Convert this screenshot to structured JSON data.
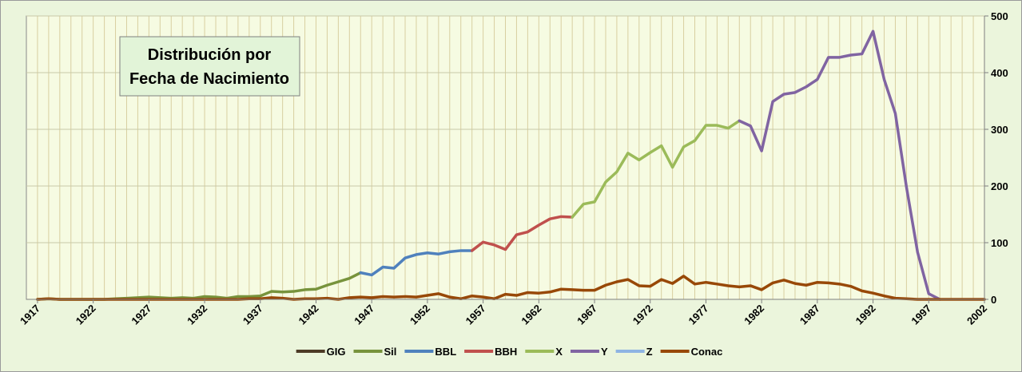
{
  "chart_data": {
    "type": "line",
    "title": [
      "Distribución por",
      "Fecha de Nacimiento"
    ],
    "x": [
      1917,
      1918,
      1919,
      1920,
      1921,
      1922,
      1923,
      1924,
      1925,
      1926,
      1927,
      1928,
      1929,
      1930,
      1931,
      1932,
      1933,
      1934,
      1935,
      1936,
      1937,
      1938,
      1939,
      1940,
      1941,
      1942,
      1943,
      1944,
      1945,
      1946,
      1947,
      1948,
      1949,
      1950,
      1951,
      1952,
      1953,
      1954,
      1955,
      1956,
      1957,
      1958,
      1959,
      1960,
      1961,
      1962,
      1963,
      1964,
      1965,
      1966,
      1967,
      1968,
      1969,
      1970,
      1971,
      1972,
      1973,
      1974,
      1975,
      1976,
      1977,
      1978,
      1979,
      1980,
      1981,
      1982,
      1983,
      1984,
      1985,
      1986,
      1987,
      1988,
      1989,
      1990,
      1991,
      1992,
      1993,
      1994,
      1995,
      1996,
      1997,
      1998,
      1999,
      2000,
      2001,
      2002
    ],
    "xlim": [
      1916,
      2002
    ],
    "xticks": [
      1917,
      1922,
      1927,
      1932,
      1937,
      1942,
      1947,
      1952,
      1957,
      1962,
      1967,
      1972,
      1977,
      1982,
      1987,
      1992,
      1997,
      2002
    ],
    "ylim": [
      0,
      500
    ],
    "yticks": [
      0,
      100,
      200,
      300,
      400,
      500
    ],
    "grid": true,
    "legend": "bottom",
    "series": [
      {
        "name": "GIG",
        "color": "#4d3b26",
        "values": [
          null,
          null,
          null,
          null,
          null,
          null,
          null,
          null,
          null,
          null,
          null,
          null,
          null,
          null,
          null,
          null,
          null,
          null,
          null,
          null,
          null,
          null,
          null,
          null,
          null,
          null,
          null,
          null,
          null,
          null,
          null,
          null,
          null,
          null,
          null,
          null,
          null,
          null,
          null,
          null,
          null,
          null,
          null,
          null,
          null,
          null,
          null,
          null,
          null,
          null,
          null,
          null,
          null,
          null,
          null,
          null,
          null,
          null,
          null,
          null,
          null,
          null,
          null,
          null,
          null,
          null,
          null,
          null,
          null,
          null,
          null,
          null,
          null,
          null,
          null,
          null,
          null,
          null,
          null,
          null,
          null,
          null,
          null,
          null,
          null,
          null
        ]
      },
      {
        "name": "Sil",
        "color": "#77933c",
        "values": [
          0,
          1,
          0,
          0,
          0,
          0,
          0,
          1,
          2,
          3,
          4,
          3,
          2,
          3,
          2,
          5,
          4,
          2,
          5,
          5,
          6,
          14,
          13,
          14,
          17,
          18,
          25,
          31,
          37,
          47,
          null,
          null,
          null,
          null,
          null,
          null,
          null,
          null,
          null,
          null,
          null,
          null,
          null,
          null,
          null,
          null,
          null,
          null,
          null,
          null,
          null,
          null,
          null,
          null,
          null,
          null,
          null,
          null,
          null,
          null,
          null,
          null,
          null,
          null,
          null,
          null,
          null,
          null,
          null,
          null,
          null,
          null,
          null,
          null,
          null,
          null,
          null,
          null,
          null,
          null,
          null,
          null,
          null,
          null,
          null,
          null
        ]
      },
      {
        "name": "BBL",
        "color": "#4f81bd",
        "values": [
          null,
          null,
          null,
          null,
          null,
          null,
          null,
          null,
          null,
          null,
          null,
          null,
          null,
          null,
          null,
          null,
          null,
          null,
          null,
          null,
          null,
          null,
          null,
          null,
          null,
          null,
          null,
          null,
          null,
          47,
          43,
          57,
          55,
          73,
          79,
          82,
          80,
          84,
          86,
          86,
          null,
          null,
          null,
          null,
          null,
          null,
          null,
          null,
          null,
          null,
          null,
          null,
          null,
          null,
          null,
          null,
          null,
          null,
          null,
          null,
          null,
          null,
          null,
          null,
          null,
          null,
          null,
          null,
          null,
          null,
          null,
          null,
          null,
          null,
          null,
          null,
          null,
          null,
          null,
          null,
          null,
          null,
          null,
          null,
          null,
          null
        ]
      },
      {
        "name": "BBH",
        "color": "#c0504d",
        "values": [
          null,
          null,
          null,
          null,
          null,
          null,
          null,
          null,
          null,
          null,
          null,
          null,
          null,
          null,
          null,
          null,
          null,
          null,
          null,
          null,
          null,
          null,
          null,
          null,
          null,
          null,
          null,
          null,
          null,
          null,
          null,
          null,
          null,
          null,
          null,
          null,
          null,
          null,
          null,
          86,
          101,
          96,
          88,
          114,
          119,
          131,
          142,
          146,
          145,
          null,
          null,
          null,
          null,
          null,
          null,
          null,
          null,
          null,
          null,
          null,
          null,
          null,
          null,
          null,
          null,
          null,
          null,
          null,
          null,
          null,
          null,
          null,
          null,
          null,
          null,
          null,
          null,
          null,
          null,
          null,
          null,
          null,
          null,
          null,
          null,
          null
        ]
      },
      {
        "name": "X",
        "color": "#9bbb59",
        "values": [
          null,
          null,
          null,
          null,
          null,
          null,
          null,
          null,
          null,
          null,
          null,
          null,
          null,
          null,
          null,
          null,
          null,
          null,
          null,
          null,
          null,
          null,
          null,
          null,
          null,
          null,
          null,
          null,
          null,
          null,
          null,
          null,
          null,
          null,
          null,
          null,
          null,
          null,
          null,
          null,
          null,
          null,
          null,
          null,
          null,
          null,
          null,
          null,
          145,
          168,
          172,
          207,
          225,
          258,
          246,
          259,
          271,
          233,
          269,
          280,
          307,
          307,
          302,
          315,
          null,
          null,
          null,
          null,
          null,
          null,
          null,
          null,
          null,
          null,
          null,
          null,
          null,
          null,
          null,
          null,
          null,
          null,
          null,
          null,
          null,
          null
        ]
      },
      {
        "name": "Y",
        "color": "#8064a2",
        "values": [
          null,
          null,
          null,
          null,
          null,
          null,
          null,
          null,
          null,
          null,
          null,
          null,
          null,
          null,
          null,
          null,
          null,
          null,
          null,
          null,
          null,
          null,
          null,
          null,
          null,
          null,
          null,
          null,
          null,
          null,
          null,
          null,
          null,
          null,
          null,
          null,
          null,
          null,
          null,
          null,
          null,
          null,
          null,
          null,
          null,
          null,
          null,
          null,
          null,
          null,
          null,
          null,
          null,
          null,
          null,
          null,
          null,
          null,
          null,
          null,
          null,
          null,
          null,
          315,
          306,
          262,
          349,
          362,
          365,
          375,
          388,
          427,
          427,
          431,
          433,
          473,
          388,
          328,
          198,
          83,
          10,
          0,
          null,
          null,
          null,
          null
        ]
      },
      {
        "name": "Z",
        "color": "#8eb4e3",
        "values": [
          null,
          null,
          null,
          null,
          null,
          null,
          null,
          null,
          null,
          null,
          null,
          null,
          null,
          null,
          null,
          null,
          null,
          null,
          null,
          null,
          null,
          null,
          null,
          null,
          null,
          null,
          null,
          null,
          null,
          null,
          null,
          null,
          null,
          null,
          null,
          null,
          null,
          null,
          null,
          null,
          null,
          null,
          null,
          null,
          null,
          null,
          null,
          null,
          null,
          null,
          null,
          null,
          null,
          null,
          null,
          null,
          null,
          null,
          null,
          null,
          null,
          null,
          null,
          null,
          null,
          null,
          null,
          null,
          null,
          null,
          null,
          null,
          null,
          null,
          null,
          null,
          null,
          null,
          null,
          null,
          null,
          null,
          null,
          null,
          null,
          null
        ]
      },
      {
        "name": "Conac",
        "color": "#984807",
        "values": [
          0,
          1,
          0,
          0,
          0,
          0,
          0,
          0,
          0,
          0,
          0,
          0,
          0,
          0,
          0,
          0,
          0,
          0,
          0,
          1,
          1,
          3,
          2,
          0,
          1,
          1,
          2,
          0,
          3,
          4,
          3,
          5,
          4,
          5,
          4,
          7,
          10,
          4,
          1,
          6,
          4,
          1,
          9,
          7,
          12,
          11,
          13,
          18,
          17,
          16,
          16,
          25,
          31,
          35,
          24,
          23,
          35,
          28,
          41,
          27,
          30,
          27,
          24,
          22,
          24,
          17,
          29,
          34,
          28,
          25,
          30,
          29,
          27,
          23,
          15,
          11,
          6,
          2,
          1,
          0,
          0,
          0,
          0,
          0,
          0,
          0
        ]
      }
    ]
  }
}
